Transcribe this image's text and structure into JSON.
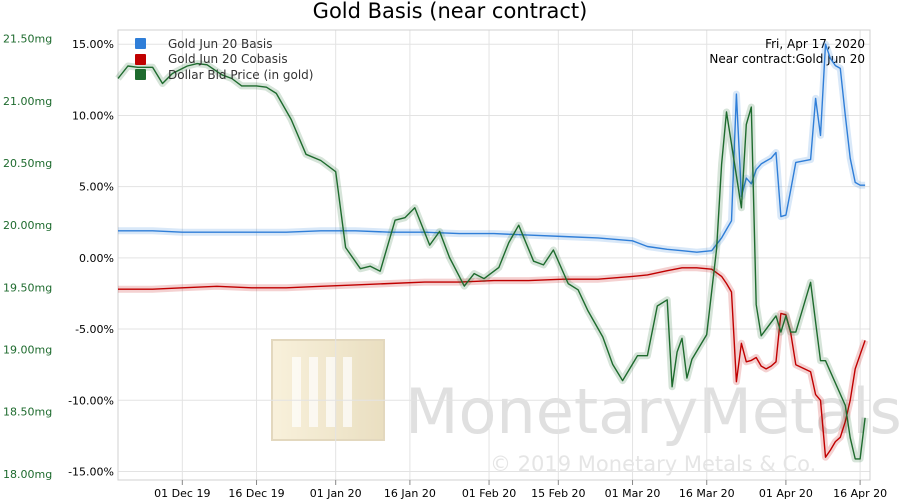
{
  "chart_data": {
    "type": "line",
    "title": "Gold Basis (near contract)",
    "date_label": "Fri, Apr 17, 2020",
    "contract_label": "Near contract:Gold Jun 20",
    "watermark": {
      "brand": "MonetaryMetals",
      "copyright": "© 2019 Monetary Metals & Co."
    },
    "x_ticks": [
      "01 Dec 19",
      "16 Dec 19",
      "01 Jan 20",
      "16 Jan 20",
      "01 Feb 20",
      "15 Feb 20",
      "01 Mar 20",
      "16 Mar 20",
      "01 Apr 20",
      "16 Apr 20"
    ],
    "x_tick_dates": [
      "2019-12-01",
      "2019-12-16",
      "2020-01-01",
      "2020-01-16",
      "2020-02-01",
      "2020-02-15",
      "2020-03-01",
      "2020-03-16",
      "2020-04-01",
      "2020-04-16"
    ],
    "x_range": [
      "2019-11-18",
      "2020-04-18"
    ],
    "left_axis": {
      "ticks": [
        "21.50mg",
        "21.00mg",
        "20.50mg",
        "20.00mg",
        "19.50mg",
        "19.00mg",
        "18.50mg",
        "18.00mg"
      ],
      "tick_values": [
        21.5,
        21.0,
        20.5,
        20.0,
        19.5,
        19.0,
        18.5,
        18.0
      ],
      "range": [
        17.95,
        21.57
      ],
      "color": "#1e6b2e"
    },
    "right_axis": {
      "ticks": [
        "15.00%",
        "10.00%",
        "5.00%",
        "0.00%",
        "-5.00%",
        "-10.00%",
        "-15.00%"
      ],
      "tick_values": [
        15,
        10,
        5,
        0,
        -5,
        -10,
        -15
      ],
      "range": [
        -15.6,
        16.0
      ],
      "color": "#000000"
    },
    "grid": true,
    "legend_position": "top-left",
    "series": [
      {
        "name": "Gold Jun 20 Basis",
        "color": "#2f7ed8",
        "axis": "right",
        "dates": [
          "2019-11-18",
          "2019-11-25",
          "2019-12-01",
          "2019-12-08",
          "2019-12-15",
          "2019-12-22",
          "2019-12-29",
          "2020-01-05",
          "2020-01-12",
          "2020-01-19",
          "2020-01-26",
          "2020-02-02",
          "2020-02-09",
          "2020-02-16",
          "2020-02-23",
          "2020-03-01",
          "2020-03-04",
          "2020-03-08",
          "2020-03-11",
          "2020-03-14",
          "2020-03-17",
          "2020-03-19",
          "2020-03-20",
          "2020-03-21",
          "2020-03-22",
          "2020-03-23",
          "2020-03-24",
          "2020-03-25",
          "2020-03-26",
          "2020-03-27",
          "2020-03-28",
          "2020-03-29",
          "2020-03-30",
          "2020-03-31",
          "2020-04-01",
          "2020-04-02",
          "2020-04-03",
          "2020-04-06",
          "2020-04-07",
          "2020-04-08",
          "2020-04-09",
          "2020-04-10",
          "2020-04-11",
          "2020-04-12",
          "2020-04-13",
          "2020-04-14",
          "2020-04-15",
          "2020-04-16",
          "2020-04-17"
        ],
        "values": [
          1.9,
          1.9,
          1.8,
          1.8,
          1.8,
          1.8,
          1.9,
          1.9,
          1.8,
          1.8,
          1.7,
          1.7,
          1.6,
          1.5,
          1.4,
          1.2,
          0.8,
          0.6,
          0.5,
          0.4,
          0.5,
          1.4,
          2.0,
          2.6,
          11.5,
          4.3,
          5.6,
          5.2,
          6.2,
          6.6,
          6.8,
          7.0,
          7.4,
          2.9,
          3.0,
          4.8,
          6.7,
          6.9,
          11.2,
          8.6,
          15.0,
          14.0,
          13.5,
          13.3,
          10.0,
          7.0,
          5.3,
          5.1,
          5.1
        ]
      },
      {
        "name": "Gold Jun 20 Cobasis",
        "color": "#c00000",
        "axis": "right",
        "dates": [
          "2019-11-18",
          "2019-11-25",
          "2019-12-01",
          "2019-12-08",
          "2019-12-15",
          "2019-12-22",
          "2019-12-29",
          "2020-01-05",
          "2020-01-12",
          "2020-01-19",
          "2020-01-26",
          "2020-02-02",
          "2020-02-09",
          "2020-02-16",
          "2020-02-23",
          "2020-03-01",
          "2020-03-04",
          "2020-03-08",
          "2020-03-11",
          "2020-03-14",
          "2020-03-17",
          "2020-03-19",
          "2020-03-20",
          "2020-03-21",
          "2020-03-22",
          "2020-03-23",
          "2020-03-24",
          "2020-03-25",
          "2020-03-26",
          "2020-03-27",
          "2020-03-28",
          "2020-03-29",
          "2020-03-30",
          "2020-03-31",
          "2020-04-01",
          "2020-04-02",
          "2020-04-03",
          "2020-04-06",
          "2020-04-07",
          "2020-04-08",
          "2020-04-09",
          "2020-04-10",
          "2020-04-11",
          "2020-04-12",
          "2020-04-13",
          "2020-04-14",
          "2020-04-15",
          "2020-04-16",
          "2020-04-17"
        ],
        "values": [
          -2.2,
          -2.2,
          -2.1,
          -2.0,
          -2.1,
          -2.1,
          -2.0,
          -1.9,
          -1.8,
          -1.7,
          -1.7,
          -1.6,
          -1.6,
          -1.5,
          -1.5,
          -1.3,
          -1.2,
          -0.9,
          -0.7,
          -0.7,
          -0.8,
          -1.3,
          -1.8,
          -2.4,
          -8.7,
          -6.0,
          -7.3,
          -7.2,
          -7.0,
          -7.6,
          -7.8,
          -7.6,
          -7.3,
          -3.9,
          -4.0,
          -5.3,
          -7.5,
          -8.0,
          -9.6,
          -10.0,
          -14.0,
          -13.5,
          -12.9,
          -12.6,
          -11.5,
          -10.0,
          -7.8,
          -6.8,
          -5.8
        ]
      },
      {
        "name": "Dollar Bid Price (in gold)",
        "color": "#1e6b2e",
        "axis": "left",
        "dates": [
          "2019-11-18",
          "2019-11-20",
          "2019-11-22",
          "2019-11-25",
          "2019-11-27",
          "2019-11-29",
          "2019-12-02",
          "2019-12-04",
          "2019-12-06",
          "2019-12-09",
          "2019-12-11",
          "2019-12-13",
          "2019-12-16",
          "2019-12-18",
          "2019-12-20",
          "2019-12-23",
          "2019-12-26",
          "2019-12-29",
          "2020-01-01",
          "2020-01-03",
          "2020-01-06",
          "2020-01-08",
          "2020-01-10",
          "2020-01-13",
          "2020-01-15",
          "2020-01-17",
          "2020-01-20",
          "2020-01-22",
          "2020-01-24",
          "2020-01-27",
          "2020-01-29",
          "2020-01-31",
          "2020-02-03",
          "2020-02-05",
          "2020-02-07",
          "2020-02-10",
          "2020-02-12",
          "2020-02-14",
          "2020-02-17",
          "2020-02-19",
          "2020-02-21",
          "2020-02-24",
          "2020-02-26",
          "2020-02-28",
          "2020-03-02",
          "2020-03-04",
          "2020-03-06",
          "2020-03-08",
          "2020-03-09",
          "2020-03-10",
          "2020-03-11",
          "2020-03-12",
          "2020-03-13",
          "2020-03-16",
          "2020-03-18",
          "2020-03-19",
          "2020-03-20",
          "2020-03-23",
          "2020-03-24",
          "2020-03-25",
          "2020-03-26",
          "2020-03-27",
          "2020-03-30",
          "2020-03-31",
          "2020-04-01",
          "2020-04-02",
          "2020-04-03",
          "2020-04-06",
          "2020-04-07",
          "2020-04-08",
          "2020-04-09",
          "2020-04-13",
          "2020-04-14",
          "2020-04-15",
          "2020-04-16",
          "2020-04-17"
        ],
        "values": [
          21.18,
          21.28,
          21.27,
          21.27,
          21.14,
          21.22,
          21.28,
          21.3,
          21.29,
          21.21,
          21.18,
          21.12,
          21.12,
          21.11,
          21.06,
          20.85,
          20.57,
          20.52,
          20.43,
          19.82,
          19.65,
          19.67,
          19.63,
          20.04,
          20.06,
          20.14,
          19.84,
          19.95,
          19.74,
          19.51,
          19.61,
          19.57,
          19.66,
          19.86,
          20.0,
          19.71,
          19.68,
          19.8,
          19.53,
          19.48,
          19.31,
          19.1,
          18.88,
          18.75,
          18.95,
          18.95,
          19.35,
          19.4,
          18.7,
          18.98,
          19.09,
          18.77,
          18.92,
          19.12,
          19.81,
          20.49,
          20.91,
          20.14,
          20.81,
          20.95,
          19.36,
          19.11,
          19.27,
          19.14,
          19.27,
          19.14,
          19.14,
          19.54,
          19.22,
          18.91,
          18.91,
          18.55,
          18.29,
          18.12,
          18.12,
          18.45
        ]
      }
    ]
  }
}
